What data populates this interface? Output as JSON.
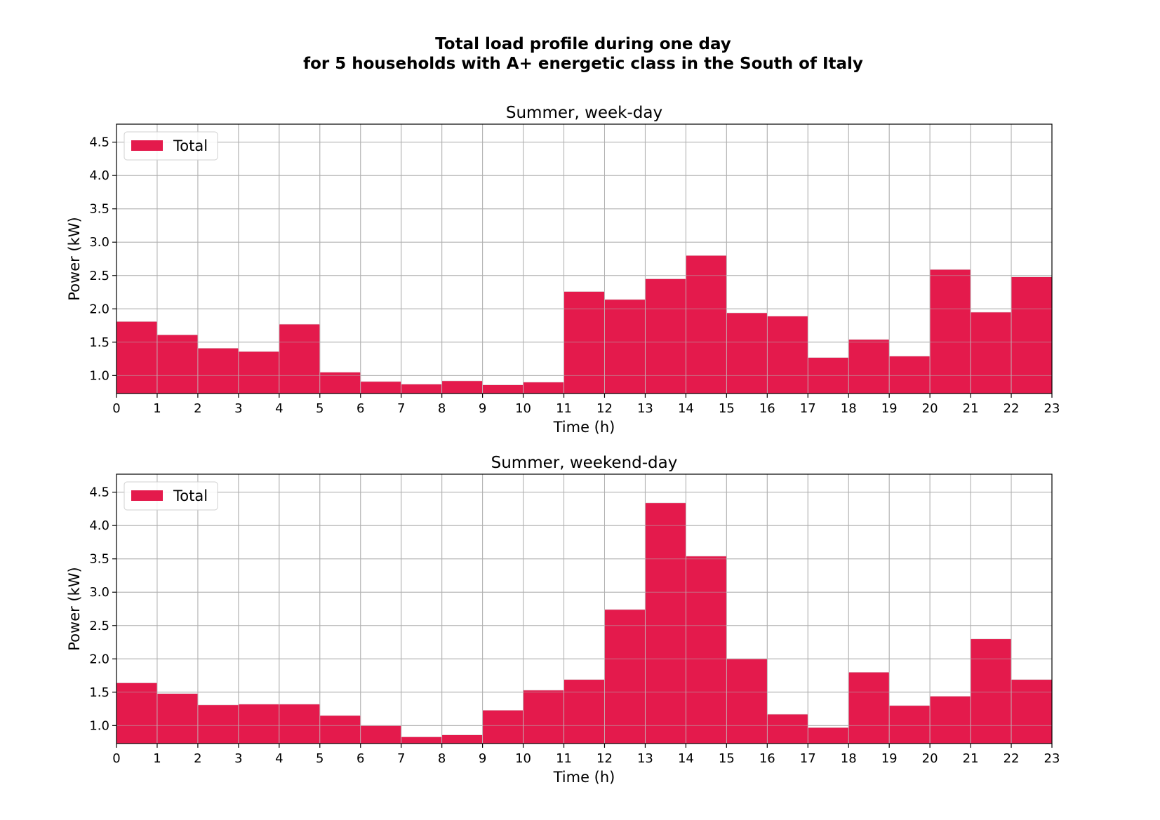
{
  "figure": {
    "title_lines": [
      "Total load profile during one day",
      "for 5 households with A+ energetic class in the South of Italy"
    ]
  },
  "chart_data": [
    {
      "type": "bar",
      "title": "Summer, week-day",
      "xlabel": "Time (h)",
      "ylabel": "Power (kW)",
      "x": [
        0,
        1,
        2,
        3,
        4,
        5,
        6,
        7,
        8,
        9,
        10,
        11,
        12,
        13,
        14,
        15,
        16,
        17,
        18,
        19,
        20,
        21,
        22
      ],
      "x_ticks": [
        "0",
        "1",
        "2",
        "3",
        "4",
        "5",
        "6",
        "7",
        "8",
        "9",
        "10",
        "11",
        "12",
        "13",
        "14",
        "15",
        "16",
        "17",
        "18",
        "19",
        "20",
        "21",
        "22",
        "23"
      ],
      "y_ticks": [
        "1.0",
        "1.5",
        "2.0",
        "2.5",
        "3.0",
        "3.5",
        "4.0",
        "4.5"
      ],
      "xlim": [
        0,
        23
      ],
      "ylim": [
        0.73,
        4.77
      ],
      "grid": true,
      "legend_position": "top-left",
      "series": [
        {
          "name": "Total",
          "color": "#e41a4c",
          "values": [
            1.81,
            1.61,
            1.41,
            1.36,
            1.77,
            1.05,
            0.91,
            0.87,
            0.92,
            0.86,
            0.9,
            2.26,
            2.14,
            2.45,
            2.8,
            1.94,
            1.89,
            1.27,
            1.54,
            1.29,
            2.59,
            1.95,
            2.48
          ]
        }
      ]
    },
    {
      "type": "bar",
      "title": "Summer, weekend-day",
      "xlabel": "Time (h)",
      "ylabel": "Power (kW)",
      "x": [
        0,
        1,
        2,
        3,
        4,
        5,
        6,
        7,
        8,
        9,
        10,
        11,
        12,
        13,
        14,
        15,
        16,
        17,
        18,
        19,
        20,
        21,
        22
      ],
      "x_ticks": [
        "0",
        "1",
        "2",
        "3",
        "4",
        "5",
        "6",
        "7",
        "8",
        "9",
        "10",
        "11",
        "12",
        "13",
        "14",
        "15",
        "16",
        "17",
        "18",
        "19",
        "20",
        "21",
        "22",
        "23"
      ],
      "y_ticks": [
        "1.0",
        "1.5",
        "2.0",
        "2.5",
        "3.0",
        "3.5",
        "4.0",
        "4.5"
      ],
      "xlim": [
        0,
        23
      ],
      "ylim": [
        0.73,
        4.77
      ],
      "grid": true,
      "legend_position": "top-left",
      "series": [
        {
          "name": "Total",
          "color": "#e41a4c",
          "values": [
            1.64,
            1.48,
            1.31,
            1.32,
            1.32,
            1.15,
            1.0,
            0.83,
            0.86,
            1.23,
            1.53,
            1.69,
            2.74,
            4.34,
            3.54,
            2.0,
            1.17,
            0.97,
            1.8,
            1.3,
            1.44,
            2.3,
            1.69
          ]
        }
      ]
    }
  ]
}
